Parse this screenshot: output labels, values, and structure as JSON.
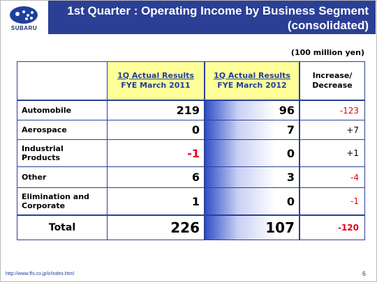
{
  "header": {
    "logo_text": "SUBARU",
    "title_line1": "1st Quarter : Operating Income by Business Segment",
    "title_line2": "(consolidated)"
  },
  "units": "(100 million yen)",
  "table": {
    "columns": {
      "c1_line1": "1Q Actual Results",
      "c1_line2": "FYE March 2011",
      "c2_line1": "1Q Actual Results",
      "c2_line2": "FYE March 2012",
      "c3_line1": "Increase/",
      "c3_line2": "Decrease"
    },
    "rows": [
      {
        "label": "Automobile",
        "v2011": "219",
        "v2012": "96",
        "change": "-123"
      },
      {
        "label": "Aerospace",
        "v2011": "0",
        "v2012": "7",
        "change": "+7"
      },
      {
        "label_line1": "Industrial",
        "label_line2": "Products",
        "v2011": "-1",
        "v2012": "0",
        "change": "+1"
      },
      {
        "label": "Other",
        "v2011": "6",
        "v2012": "3",
        "change": "-4"
      },
      {
        "label_line1": "Elimination and",
        "label_line2": "Corporate",
        "v2011": "1",
        "v2012": "0",
        "change": "-1"
      }
    ],
    "total": {
      "label": "Total",
      "v2011": "226",
      "v2012": "107",
      "change": "-120"
    }
  },
  "footer": {
    "url": "http://www.fhi.co.jp/ir/index.html",
    "page": "6"
  },
  "colors": {
    "header_bg": "#2b3f95",
    "highlight": "#ffff99",
    "negative": "#e2001a"
  }
}
